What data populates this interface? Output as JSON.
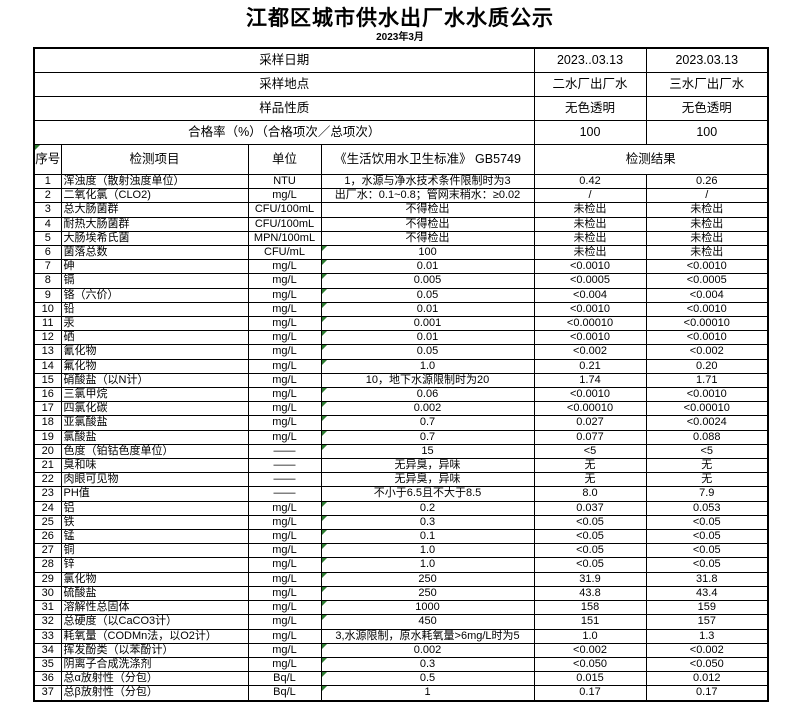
{
  "page": {
    "title": "江都区城市供水出厂水水质公示",
    "subtitle": "2023年3月"
  },
  "colors": {
    "note_triangle": "#2e7d32",
    "border": "#000000",
    "background": "#ffffff",
    "text": "#000000"
  },
  "info_rows": [
    {
      "label": "采样日期",
      "v1": "2023..03.13",
      "v2": "2023.03.13"
    },
    {
      "label": "采样地点",
      "v1": "二水厂出厂水",
      "v2": "三水厂出厂水"
    },
    {
      "label": "样品性质",
      "v1": "无色透明",
      "v2": "无色透明"
    },
    {
      "label": "合格率（%）（合格项次／总项次）",
      "v1": "100",
      "v2": "100"
    }
  ],
  "table": {
    "headers": {
      "no": "序号",
      "item": "检测项目",
      "unit": "单位",
      "standard": "《生活饮用水卫生标准》 GB5749",
      "result": "检测结果"
    },
    "header_note_on_no_cell": true,
    "rows": [
      {
        "no": "1",
        "item": "浑浊度（散射浊度单位）",
        "unit": "NTU",
        "standard": "1，水源与净水技术条件限制时为3",
        "r1": "0.42",
        "r2": "0.26",
        "note": false
      },
      {
        "no": "2",
        "item": "二氧化氯（CLO2)",
        "unit": "mg/L",
        "standard": "出厂水：0.1~0.8；管网末稍水：≥0.02",
        "r1": "/",
        "r2": "/",
        "note": false
      },
      {
        "no": "3",
        "item": "总大肠菌群",
        "unit": "CFU/100mL",
        "standard": "不得检出",
        "r1": "未检出",
        "r2": "未检出",
        "note": false
      },
      {
        "no": "4",
        "item": "耐热大肠菌群",
        "unit": "CFU/100mL",
        "standard": "不得检出",
        "r1": "未检出",
        "r2": "未检出",
        "note": false
      },
      {
        "no": "5",
        "item": "大肠埃希氏菌",
        "unit": "MPN/100mL",
        "standard": "不得检出",
        "r1": "未检出",
        "r2": "未检出",
        "note": false
      },
      {
        "no": "6",
        "item": "菌落总数",
        "unit": "CFU/mL",
        "standard": "100",
        "r1": "未检出",
        "r2": "未检出",
        "note": true
      },
      {
        "no": "7",
        "item": "砷",
        "unit": "mg/L",
        "standard": "0.01",
        "r1": "<0.0010",
        "r2": "<0.0010",
        "note": true
      },
      {
        "no": "8",
        "item": "镉",
        "unit": "mg/L",
        "standard": "0.005",
        "r1": "<0.0005",
        "r2": "<0.0005",
        "note": true
      },
      {
        "no": "9",
        "item": "铬（六价）",
        "unit": "mg/L",
        "standard": "0.05",
        "r1": "<0.004",
        "r2": "<0.004",
        "note": true
      },
      {
        "no": "10",
        "item": "铅",
        "unit": "mg/L",
        "standard": "0.01",
        "r1": "<0.0010",
        "r2": "<0.0010",
        "note": true
      },
      {
        "no": "11",
        "item": "汞",
        "unit": "mg/L",
        "standard": "0.001",
        "r1": "<0.00010",
        "r2": "<0.00010",
        "note": true
      },
      {
        "no": "12",
        "item": "硒",
        "unit": "mg/L",
        "standard": "0.01",
        "r1": "<0.0010",
        "r2": "<0.0010",
        "note": true
      },
      {
        "no": "13",
        "item": "氰化物",
        "unit": "mg/L",
        "standard": "0.05",
        "r1": "<0.002",
        "r2": "<0.002",
        "note": true
      },
      {
        "no": "14",
        "item": "氟化物",
        "unit": "mg/L",
        "standard": "1.0",
        "r1": "0.21",
        "r2": "0.20",
        "note": true
      },
      {
        "no": "15",
        "item": "硝酸盐（以N计）",
        "unit": "mg/L",
        "standard": "10，地下水源限制时为20",
        "r1": "1.74",
        "r2": "1.71",
        "note": false
      },
      {
        "no": "16",
        "item": "三氯甲烷",
        "unit": "mg/L",
        "standard": "0.06",
        "r1": "<0.0010",
        "r2": "<0.0010",
        "note": true
      },
      {
        "no": "17",
        "item": "四氯化碳",
        "unit": "mg/L",
        "standard": "0.002",
        "r1": "<0.00010",
        "r2": "<0.00010",
        "note": true
      },
      {
        "no": "18",
        "item": "亚氯酸盐",
        "unit": "mg/L",
        "standard": "0.7",
        "r1": "0.027",
        "r2": "<0.0024",
        "note": true
      },
      {
        "no": "19",
        "item": "氯酸盐",
        "unit": "mg/L",
        "standard": "0.7",
        "r1": "0.077",
        "r2": "0.088",
        "note": true
      },
      {
        "no": "20",
        "item": "色度（铂钴色度单位）",
        "unit": "——",
        "standard": "15",
        "r1": "<5",
        "r2": "<5",
        "note": true
      },
      {
        "no": "21",
        "item": "臭和味",
        "unit": "——",
        "standard": "无异臭，异味",
        "r1": "无",
        "r2": "无",
        "note": false
      },
      {
        "no": "22",
        "item": "肉眼可见物",
        "unit": "——",
        "standard": "无异臭，异味",
        "r1": "无",
        "r2": "无",
        "note": false
      },
      {
        "no": "23",
        "item": "PH值",
        "unit": "——",
        "standard": "不小于6.5且不大于8.5",
        "r1": "8.0",
        "r2": "7.9",
        "note": false
      },
      {
        "no": "24",
        "item": "铝",
        "unit": "mg/L",
        "standard": "0.2",
        "r1": "0.037",
        "r2": "0.053",
        "note": true
      },
      {
        "no": "25",
        "item": "铁",
        "unit": "mg/L",
        "standard": "0.3",
        "r1": "<0.05",
        "r2": "<0.05",
        "note": true
      },
      {
        "no": "26",
        "item": "锰",
        "unit": "mg/L",
        "standard": "0.1",
        "r1": "<0.05",
        "r2": "<0.05",
        "note": true
      },
      {
        "no": "27",
        "item": "铜",
        "unit": "mg/L",
        "standard": "1.0",
        "r1": "<0.05",
        "r2": "<0.05",
        "note": true
      },
      {
        "no": "28",
        "item": "锌",
        "unit": "mg/L",
        "standard": "1.0",
        "r1": "<0.05",
        "r2": "<0.05",
        "note": true
      },
      {
        "no": "29",
        "item": "氯化物",
        "unit": "mg/L",
        "standard": "250",
        "r1": "31.9",
        "r2": "31.8",
        "note": true
      },
      {
        "no": "30",
        "item": "硫酸盐",
        "unit": "mg/L",
        "standard": "250",
        "r1": "43.8",
        "r2": "43.4",
        "note": true
      },
      {
        "no": "31",
        "item": "溶解性总固体",
        "unit": "mg/L",
        "standard": "1000",
        "r1": "158",
        "r2": "159",
        "note": true
      },
      {
        "no": "32",
        "item": "总硬度（以CaCO3计）",
        "unit": "mg/L",
        "standard": "450",
        "r1": "151",
        "r2": "157",
        "note": true
      },
      {
        "no": "33",
        "item": "耗氧量（CODMn法，以O2计）",
        "unit": "mg/L",
        "standard": "3,水源限制，原水耗氧量>6mg/L时为5",
        "r1": "1.0",
        "r2": "1.3",
        "note": false
      },
      {
        "no": "34",
        "item": "挥发酚类（以苯酚计）",
        "unit": "mg/L",
        "standard": "0.002",
        "r1": "<0.002",
        "r2": "<0.002",
        "note": true
      },
      {
        "no": "35",
        "item": "阴离子合成洗涤剂",
        "unit": "mg/L",
        "standard": "0.3",
        "r1": "<0.050",
        "r2": "<0.050",
        "note": true
      },
      {
        "no": "36",
        "item": "总α放射性（分包）",
        "unit": "Bq/L",
        "standard": "0.5",
        "r1": "0.015",
        "r2": "0.012",
        "note": true
      },
      {
        "no": "37",
        "item": "总β放射性（分包）",
        "unit": "Bq/L",
        "standard": "1",
        "r1": "0.17",
        "r2": "0.17",
        "note": true
      }
    ]
  }
}
